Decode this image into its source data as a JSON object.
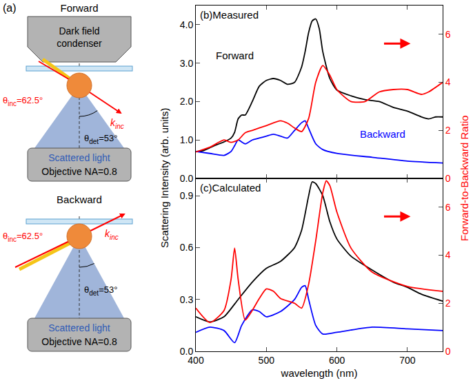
{
  "panel_a": {
    "label": "(a)",
    "setups": [
      {
        "title": "Forward",
        "condenser": "Dark field condenser",
        "theta_inc": {
          "symbol": "θ",
          "sub": "inc",
          "text": "=62.5°"
        },
        "theta_det": {
          "symbol": "θ",
          "sub": "det",
          "text": "=53°"
        },
        "k": {
          "symbol": "k",
          "sub": "inc"
        },
        "detector": [
          "Scattered light",
          "Objective NA=0.8"
        ]
      },
      {
        "title": "Backward",
        "theta_inc": {
          "symbol": "θ",
          "sub": "inc",
          "text": "=62.5°"
        },
        "theta_det": {
          "symbol": "θ",
          "sub": "det",
          "text": "=53°"
        },
        "k": {
          "symbol": "k",
          "sub": "inc"
        },
        "detector": [
          "Scattered light",
          "Objective NA=0.8"
        ]
      }
    ]
  },
  "shared": {
    "ylabel": "Scattering Intensity (arb. units)",
    "y2label": "Forward-to-Backward Ratio"
  },
  "chart_data": [
    {
      "type": "line",
      "title": "(b)Measured",
      "xlim": [
        400,
        750
      ],
      "xticks": [
        400,
        500,
        600,
        700
      ],
      "ylim": [
        0,
        4.5
      ],
      "yticks": [
        {
          "value": 0,
          "label": "0.0"
        },
        {
          "value": 1,
          "label": "1.0"
        },
        {
          "value": 2,
          "label": "2.0"
        },
        {
          "value": 3,
          "label": "3.0"
        },
        {
          "value": 4,
          "label": "4.0"
        }
      ],
      "y2lim": [
        0,
        7.2
      ],
      "y2ticks": [
        0,
        2,
        4,
        6
      ],
      "tick_labels": "y",
      "grid": false,
      "series": [
        {
          "name": "Forward",
          "color": "#000000",
          "x": [
            400,
            410,
            420,
            430,
            440,
            450,
            455,
            460,
            465,
            470,
            480,
            490,
            500,
            510,
            520,
            530,
            540,
            550,
            555,
            560,
            565,
            570,
            575,
            580,
            590,
            600,
            620,
            640,
            660,
            680,
            700,
            720,
            730,
            740,
            750
          ],
          "values": [
            0.7,
            0.72,
            0.8,
            0.88,
            0.95,
            1.05,
            1.2,
            1.55,
            1.65,
            1.65,
            2.0,
            2.4,
            2.55,
            2.6,
            2.55,
            2.45,
            2.5,
            2.9,
            3.3,
            3.8,
            4.1,
            4.15,
            3.9,
            3.3,
            2.6,
            2.3,
            2.15,
            2.05,
            2.0,
            1.85,
            1.75,
            1.6,
            1.55,
            1.6,
            1.6
          ]
        },
        {
          "name": "Backward",
          "color": "#0000ff",
          "x": [
            400,
            420,
            440,
            450,
            455,
            460,
            470,
            480,
            490,
            500,
            510,
            520,
            530,
            540,
            550,
            555,
            560,
            570,
            580,
            600,
            650,
            700,
            750
          ],
          "values": [
            0.7,
            0.65,
            0.6,
            0.7,
            0.85,
            1.0,
            0.9,
            1.0,
            1.05,
            1.1,
            1.15,
            1.1,
            1.05,
            1.25,
            1.45,
            1.5,
            1.3,
            0.9,
            0.75,
            0.65,
            0.55,
            0.45,
            0.4
          ]
        },
        {
          "color": "#ff0000",
          "axis": "y2",
          "x": [
            400,
            420,
            440,
            450,
            460,
            470,
            480,
            500,
            520,
            530,
            540,
            550,
            560,
            570,
            580,
            590,
            600,
            620,
            640,
            660,
            680,
            700,
            720,
            730,
            750
          ],
          "values": [
            1.1,
            1.3,
            1.6,
            1.5,
            1.6,
            1.9,
            2.0,
            2.2,
            2.4,
            2.3,
            2.1,
            1.95,
            2.5,
            4.0,
            4.7,
            4.3,
            3.7,
            3.2,
            3.2,
            3.6,
            3.7,
            3.7,
            3.5,
            3.6,
            4.0
          ]
        }
      ],
      "annotations": [
        {
          "text": "Forward",
          "x": 455,
          "y": 3.2,
          "color": "#000000"
        },
        {
          "text": "Backward",
          "x": 665,
          "y": 1.15,
          "color": "#0000ff"
        }
      ]
    },
    {
      "type": "line",
      "title": "(c)Calculated",
      "xlabel": "wavelength (nm)",
      "xlim": [
        400,
        750
      ],
      "xticks": [
        400,
        500,
        600,
        700
      ],
      "ylim": [
        0,
        1.0
      ],
      "yticks": [
        {
          "value": 0,
          "label": "0.0"
        },
        0.3,
        0.6,
        0.9
      ],
      "y2lim": [
        0,
        7.2
      ],
      "y2ticks": [
        0,
        2,
        4,
        6
      ],
      "grid": false,
      "series": [
        {
          "color": "#000000",
          "x": [
            400,
            420,
            440,
            460,
            480,
            500,
            520,
            540,
            550,
            560,
            565,
            570,
            580,
            590,
            600,
            620,
            650,
            680,
            700,
            720,
            750
          ],
          "values": [
            0.2,
            0.17,
            0.2,
            0.3,
            0.4,
            0.48,
            0.52,
            0.6,
            0.7,
            0.9,
            0.98,
            0.97,
            0.9,
            0.75,
            0.65,
            0.55,
            0.47,
            0.4,
            0.37,
            0.33,
            0.29
          ]
        },
        {
          "color": "#0000ff",
          "x": [
            400,
            420,
            440,
            455,
            465,
            480,
            490,
            500,
            520,
            540,
            550,
            555,
            560,
            570,
            580,
            600,
            650,
            700,
            750
          ],
          "values": [
            0.11,
            0.14,
            0.12,
            0.05,
            0.15,
            0.24,
            0.23,
            0.2,
            0.23,
            0.3,
            0.37,
            0.38,
            0.3,
            0.15,
            0.1,
            0.11,
            0.14,
            0.13,
            0.12
          ]
        },
        {
          "color": "#ff0000",
          "axis": "y2",
          "x": [
            400,
            420,
            440,
            450,
            455,
            460,
            470,
            480,
            490,
            500,
            510,
            520,
            540,
            550,
            560,
            570,
            580,
            585,
            590,
            600,
            620,
            650,
            700,
            750
          ],
          "values": [
            1.8,
            1.2,
            1.7,
            3.0,
            4.3,
            3.0,
            1.3,
            1.7,
            2.2,
            2.6,
            2.5,
            2.2,
            2.0,
            1.8,
            2.8,
            4.6,
            6.6,
            7.1,
            6.9,
            5.8,
            4.3,
            3.3,
            2.7,
            2.5
          ]
        }
      ]
    }
  ]
}
